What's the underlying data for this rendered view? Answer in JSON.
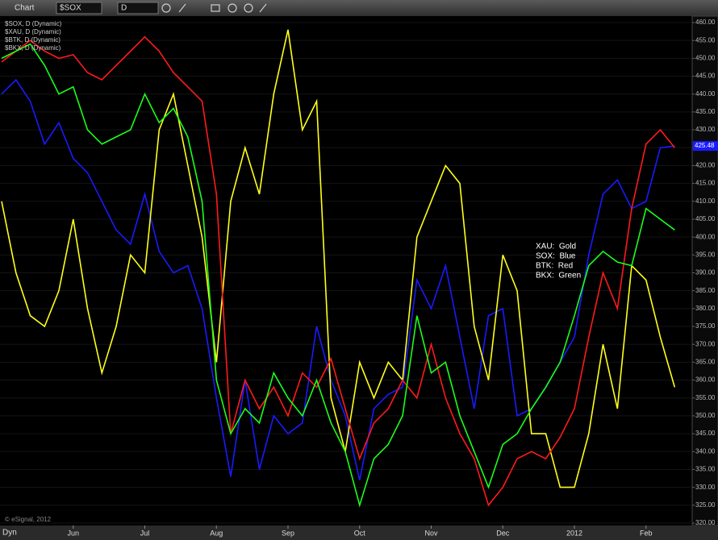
{
  "toolbar": {
    "title": "Chart",
    "symbol": "$SOX",
    "interval": "D"
  },
  "footer": {
    "mode": "Dyn",
    "copyright": "© eSignal, 2012"
  },
  "chart_data": {
    "type": "line",
    "categories": [
      null,
      null,
      null,
      null,
      null,
      "Jun",
      null,
      null,
      null,
      null,
      "Jul",
      null,
      null,
      null,
      null,
      "Aug",
      null,
      null,
      null,
      null,
      "Sep",
      null,
      null,
      null,
      null,
      "Oct",
      null,
      null,
      null,
      null,
      "Nov",
      null,
      null,
      null,
      null,
      "Dec",
      null,
      null,
      null,
      null,
      "2012",
      null,
      null,
      null,
      null,
      "Feb",
      null,
      null
    ],
    "series": [
      {
        "name": "$SOX, D (Dynamic)",
        "color": "#1a1aff",
        "values": [
          440,
          444,
          438,
          426,
          432,
          422,
          418,
          410,
          402,
          398,
          412,
          396,
          390,
          392,
          380,
          355,
          333,
          360,
          335,
          350,
          345,
          348,
          375,
          360,
          350,
          332,
          352,
          356,
          358,
          388,
          380,
          392,
          372,
          352,
          378,
          380,
          350,
          352,
          358,
          365,
          372,
          395,
          412,
          416,
          408,
          410,
          425,
          425.48
        ]
      },
      {
        "name": "$XAU, D (Dynamic)",
        "color": "#ffff1a",
        "values": [
          410,
          390,
          378,
          375,
          385,
          405,
          380,
          362,
          375,
          395,
          390,
          430,
          440,
          420,
          400,
          365,
          410,
          425,
          412,
          440,
          458,
          430,
          438,
          355,
          340,
          365,
          355,
          365,
          360,
          400,
          410,
          420,
          415,
          375,
          360,
          395,
          385,
          345,
          345,
          330,
          330,
          345,
          370,
          352,
          392,
          388,
          372,
          358
        ]
      },
      {
        "name": "$BTK, D (Dynamic)",
        "color": "#ff1a1a",
        "values": [
          449,
          452,
          455,
          452,
          450,
          451,
          446,
          444,
          448,
          452,
          456,
          452,
          446,
          442,
          438,
          412,
          345,
          360,
          352,
          358,
          350,
          362,
          358,
          366,
          352,
          338,
          348,
          352,
          360,
          355,
          370,
          355,
          345,
          338,
          325,
          330,
          338,
          340,
          338,
          344,
          352,
          372,
          390,
          380,
          408,
          426,
          430,
          425
        ]
      },
      {
        "name": "$BKX, D (Dynamic)",
        "color": "#1aff1a",
        "values": [
          450,
          452,
          454,
          448,
          440,
          442,
          430,
          426,
          428,
          430,
          440,
          432,
          436,
          428,
          410,
          360,
          345,
          352,
          348,
          362,
          355,
          350,
          360,
          348,
          340,
          325,
          338,
          342,
          350,
          378,
          362,
          365,
          350,
          340,
          330,
          342,
          345,
          352,
          358,
          365,
          378,
          392,
          396,
          393,
          392,
          408,
          405,
          402
        ]
      }
    ],
    "ylim": [
      320,
      460
    ],
    "yticks": [
      {
        "value": 320,
        "label": "320.00"
      },
      {
        "value": 325,
        "label": "325.00"
      },
      {
        "value": 330,
        "label": "330.00"
      },
      {
        "value": 335,
        "label": "335.00"
      },
      {
        "value": 340,
        "label": "340.00"
      },
      {
        "value": 345,
        "label": "345.00"
      },
      {
        "value": 350,
        "label": "350.00"
      },
      {
        "value": 355,
        "label": "355.00"
      },
      {
        "value": 360,
        "label": "360.00"
      },
      {
        "value": 365,
        "label": "365.00"
      },
      {
        "value": 370,
        "label": "370.00"
      },
      {
        "value": 375,
        "label": "375.00"
      },
      {
        "value": 380,
        "label": "380.00"
      },
      {
        "value": 385,
        "label": "385.00"
      },
      {
        "value": 390,
        "label": "390.00"
      },
      {
        "value": 395,
        "label": "395.00"
      },
      {
        "value": 400,
        "label": "400.00"
      },
      {
        "value": 405,
        "label": "405.00"
      },
      {
        "value": 410,
        "label": "410.00"
      },
      {
        "value": 415,
        "label": "415.00"
      },
      {
        "value": 420,
        "label": "420.00"
      },
      {
        "value": 425,
        "label": "425.00"
      },
      {
        "value": 430,
        "label": "430.00"
      },
      {
        "value": 435,
        "label": "435.00"
      },
      {
        "value": 440,
        "label": "440.00"
      },
      {
        "value": 445,
        "label": "445.00"
      },
      {
        "value": 450,
        "label": "450.00"
      },
      {
        "value": 455,
        "label": "455.00"
      },
      {
        "value": 460,
        "label": "460.00"
      }
    ],
    "grid": true,
    "legend": "top-left",
    "annotations": [
      "XAU:  Gold",
      "SOX:  Blue",
      "BTK:  Red",
      "BKX:  Green"
    ],
    "last_value_series": 0
  }
}
